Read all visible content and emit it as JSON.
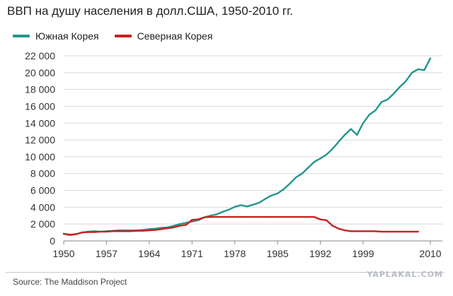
{
  "chart_data": {
    "type": "line",
    "title": "ВВП на душу населения в долл.США, 1950-2010 гг.",
    "xlabel": "",
    "ylabel": "",
    "xlim": [
      1950,
      2010
    ],
    "ylim": [
      0,
      22000
    ],
    "x_ticks": [
      1950,
      1957,
      1964,
      1971,
      1978,
      1985,
      1992,
      1999,
      2010
    ],
    "x_tick_labels": [
      "1950",
      "1957",
      "1964",
      "1971",
      "1978",
      "1985",
      "1992",
      "1999",
      "2010"
    ],
    "y_ticks": [
      0,
      2000,
      4000,
      6000,
      8000,
      10000,
      12000,
      14000,
      16000,
      18000,
      20000,
      22000
    ],
    "y_tick_labels": [
      "0",
      "2 000",
      "4 000",
      "6 000",
      "8 000",
      "10 000",
      "12 000",
      "14 000",
      "16 000",
      "18 000",
      "20 000",
      "22 000"
    ],
    "grid": "horizontal",
    "legend_position": "top-left",
    "series": [
      {
        "name": "Южная Корея",
        "color": "#22968c",
        "points": [
          [
            1950,
            850
          ],
          [
            1951,
            750
          ],
          [
            1952,
            800
          ],
          [
            1953,
            1000
          ],
          [
            1954,
            1100
          ],
          [
            1955,
            1150
          ],
          [
            1956,
            1100
          ],
          [
            1957,
            1150
          ],
          [
            1958,
            1200
          ],
          [
            1959,
            1250
          ],
          [
            1960,
            1250
          ],
          [
            1961,
            1250
          ],
          [
            1962,
            1250
          ],
          [
            1963,
            1300
          ],
          [
            1964,
            1400
          ],
          [
            1965,
            1450
          ],
          [
            1966,
            1550
          ],
          [
            1967,
            1600
          ],
          [
            1968,
            1800
          ],
          [
            1969,
            2000
          ],
          [
            1970,
            2150
          ],
          [
            1971,
            2300
          ],
          [
            1972,
            2450
          ],
          [
            1973,
            2800
          ],
          [
            1974,
            3000
          ],
          [
            1975,
            3150
          ],
          [
            1976,
            3450
          ],
          [
            1977,
            3700
          ],
          [
            1978,
            4050
          ],
          [
            1979,
            4250
          ],
          [
            1980,
            4100
          ],
          [
            1981,
            4300
          ],
          [
            1982,
            4550
          ],
          [
            1983,
            5000
          ],
          [
            1984,
            5400
          ],
          [
            1985,
            5650
          ],
          [
            1986,
            6150
          ],
          [
            1987,
            6800
          ],
          [
            1988,
            7550
          ],
          [
            1989,
            8000
          ],
          [
            1990,
            8700
          ],
          [
            1991,
            9400
          ],
          [
            1992,
            9800
          ],
          [
            1993,
            10250
          ],
          [
            1994,
            10950
          ],
          [
            1995,
            11800
          ],
          [
            1996,
            12600
          ],
          [
            1997,
            13300
          ],
          [
            1998,
            12600
          ],
          [
            1999,
            14000
          ],
          [
            2000,
            15000
          ],
          [
            2001,
            15500
          ],
          [
            2002,
            16500
          ],
          [
            2003,
            16800
          ],
          [
            2004,
            17500
          ],
          [
            2005,
            18300
          ],
          [
            2006,
            19000
          ],
          [
            2007,
            20000
          ],
          [
            2008,
            20400
          ],
          [
            2009,
            20300
          ],
          [
            2010,
            21700
          ]
        ]
      },
      {
        "name": "Северная Корея",
        "color": "#cc1f1f",
        "points": [
          [
            1950,
            850
          ],
          [
            1951,
            700
          ],
          [
            1952,
            800
          ],
          [
            1953,
            1000
          ],
          [
            1954,
            1050
          ],
          [
            1955,
            1050
          ],
          [
            1956,
            1100
          ],
          [
            1957,
            1100
          ],
          [
            1958,
            1150
          ],
          [
            1959,
            1150
          ],
          [
            1960,
            1150
          ],
          [
            1961,
            1150
          ],
          [
            1962,
            1200
          ],
          [
            1963,
            1200
          ],
          [
            1964,
            1250
          ],
          [
            1965,
            1300
          ],
          [
            1966,
            1400
          ],
          [
            1967,
            1500
          ],
          [
            1968,
            1600
          ],
          [
            1969,
            1800
          ],
          [
            1970,
            1900
          ],
          [
            1971,
            2500
          ],
          [
            1972,
            2550
          ],
          [
            1973,
            2800
          ],
          [
            1974,
            2850
          ],
          [
            1975,
            2850
          ],
          [
            1976,
            2850
          ],
          [
            1977,
            2850
          ],
          [
            1978,
            2850
          ],
          [
            1979,
            2850
          ],
          [
            1980,
            2850
          ],
          [
            1981,
            2850
          ],
          [
            1982,
            2850
          ],
          [
            1983,
            2850
          ],
          [
            1984,
            2850
          ],
          [
            1985,
            2850
          ],
          [
            1986,
            2850
          ],
          [
            1987,
            2850
          ],
          [
            1988,
            2850
          ],
          [
            1989,
            2850
          ],
          [
            1990,
            2850
          ],
          [
            1991,
            2850
          ],
          [
            1992,
            2550
          ],
          [
            1993,
            2450
          ],
          [
            1994,
            1800
          ],
          [
            1995,
            1450
          ],
          [
            1996,
            1250
          ],
          [
            1997,
            1150
          ],
          [
            1998,
            1150
          ],
          [
            1999,
            1150
          ],
          [
            2000,
            1150
          ],
          [
            2001,
            1150
          ],
          [
            2002,
            1100
          ],
          [
            2003,
            1100
          ],
          [
            2004,
            1100
          ],
          [
            2005,
            1100
          ],
          [
            2006,
            1100
          ],
          [
            2007,
            1100
          ],
          [
            2008,
            1100
          ]
        ]
      }
    ]
  },
  "source": "Source: The Maddison Project",
  "watermark": "YAPLAKAL.COM"
}
